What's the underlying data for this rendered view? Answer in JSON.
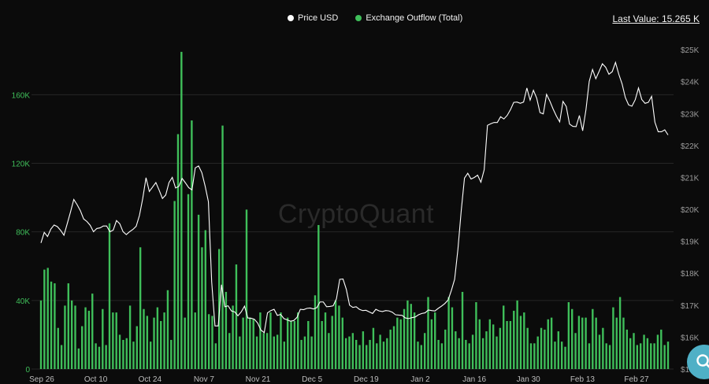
{
  "legend": {
    "price_label": "Price USD",
    "outflow_label": "Exchange Outflow (Total)"
  },
  "last_value": "Last Value: 15.265 K",
  "watermark": "CryptoQuant",
  "colors": {
    "background": "#0b0b0b",
    "price_line": "#ffffff",
    "outflow_bar": "#3fbf5a",
    "grid": "#2b2b2b",
    "search_button": "#4fb0c6"
  },
  "icons": {
    "search": "search-icon"
  },
  "chart_data": {
    "type": "bar",
    "x_ticks": [
      "Sep 26",
      "Oct 10",
      "Oct 24",
      "Nov 7",
      "Nov 21",
      "Dec 5",
      "Dec 19",
      "Jan 2",
      "Jan 16",
      "Jan 30",
      "Feb 13",
      "Feb 27"
    ],
    "y_left": {
      "ticks": [
        "0",
        "40K",
        "80K",
        "120K",
        "160K"
      ],
      "ylim": [
        0,
        190000
      ]
    },
    "y_right": {
      "ticks": [
        "$15K",
        "$16K",
        "$17K",
        "$18K",
        "$19K",
        "$20K",
        "$21K",
        "$22K",
        "$23K",
        "$24K",
        "$25K"
      ],
      "ylim": [
        15000,
        25200
      ]
    },
    "grid": true,
    "legend_placement": "top-center",
    "series": [
      {
        "name": "Exchange Outflow (Total)",
        "kind": "bar",
        "axis": "left",
        "values": [
          40000,
          58000,
          59000,
          51000,
          50000,
          24000,
          14000,
          37000,
          50000,
          40000,
          37000,
          12000,
          25000,
          36000,
          34000,
          44000,
          15000,
          13000,
          35000,
          14000,
          85000,
          33000,
          33000,
          20000,
          17000,
          18000,
          37000,
          16000,
          25000,
          71000,
          35000,
          31000,
          16000,
          30000,
          36000,
          28000,
          33000,
          46000,
          17000,
          98000,
          137000,
          185000,
          30000,
          102000,
          145000,
          33000,
          90000,
          71000,
          81000,
          32000,
          31000,
          15000,
          70000,
          142000,
          45000,
          21000,
          37000,
          61000,
          19000,
          30000,
          93000,
          30000,
          29000,
          19000,
          33000,
          21000,
          21000,
          33000,
          19000,
          20000,
          33000,
          16000,
          30000,
          28000,
          28000,
          33000,
          17000,
          19000,
          28000,
          19000,
          43000,
          84000,
          28000,
          33000,
          21000,
          31000,
          40000,
          37000,
          30000,
          18000,
          19000,
          21000,
          17000,
          14000,
          22000,
          14000,
          17000,
          24000,
          15000,
          20000,
          16000,
          18000,
          23000,
          25000,
          30000,
          29000,
          35000,
          40000,
          38000,
          33000,
          16000,
          14000,
          21000,
          42000,
          29000,
          33000,
          17000,
          15000,
          23000,
          42000,
          36000,
          22000,
          18000,
          45000,
          17000,
          15000,
          20000,
          39000,
          29000,
          18000,
          22000,
          29000,
          26000,
          19000,
          24000,
          37000,
          28000,
          28000,
          34000,
          40000,
          31000,
          33000,
          24000,
          15000,
          15000,
          19000,
          24000,
          23000,
          29000,
          30000,
          16000,
          22000,
          16000,
          13000,
          39000,
          35000,
          21000,
          31000,
          30000,
          30000,
          15000,
          35000,
          30000,
          20000,
          24000,
          15000,
          14000,
          36000,
          30000,
          42000,
          30000,
          23000,
          18000,
          21000,
          14000,
          15000,
          20000,
          18000,
          15000,
          15000,
          20000,
          23000,
          14000,
          16000
        ],
        "bar_values_note": ""
      },
      {
        "name": "Price USD",
        "kind": "line",
        "axis": "right",
        "values": [
          18950,
          19280,
          19150,
          19380,
          19510,
          19460,
          19340,
          19190,
          19550,
          19920,
          20310,
          20150,
          19960,
          19700,
          19620,
          19500,
          19300,
          19400,
          19420,
          19480,
          19480,
          19300,
          19350,
          19650,
          19550,
          19300,
          19210,
          19300,
          19370,
          19470,
          19810,
          20340,
          20990,
          20560,
          20700,
          20840,
          20600,
          20340,
          20450,
          20840,
          21000,
          20670,
          20720,
          20970,
          20830,
          20680,
          20610,
          21300,
          21360,
          21150,
          20730,
          20240,
          17730,
          16350,
          16350,
          17640,
          16950,
          16980,
          16820,
          16790,
          16670,
          16790,
          16970,
          16600,
          16590,
          16560,
          16440,
          16220,
          16140,
          16760,
          16830,
          16870,
          16680,
          16710,
          16580,
          16540,
          16500,
          16520,
          16620,
          16870,
          16860,
          16900,
          16910,
          16880,
          16920,
          17100,
          17100,
          16950,
          16960,
          16980,
          17200,
          17810,
          17820,
          17500,
          17000,
          16930,
          16950,
          16870,
          16830,
          16840,
          16790,
          16740,
          16870,
          16820,
          16800,
          16830,
          16820,
          16780,
          16700,
          16690,
          16680,
          16600,
          16580,
          16610,
          16630,
          16700,
          16740,
          16760,
          16850,
          16830,
          16820,
          16900,
          16970,
          17050,
          17160,
          17460,
          17810,
          18750,
          19950,
          20980,
          21130,
          20950,
          21000,
          21070,
          20850,
          21240,
          22630,
          22680,
          22720,
          22720,
          22900,
          22830,
          22940,
          23120,
          23350,
          23360,
          23320,
          23360,
          23800,
          23420,
          23730,
          23480,
          23030,
          22990,
          23600,
          23390,
          23140,
          22920,
          22740,
          23380,
          23220,
          22670,
          22600,
          22590,
          22940,
          22460,
          23120,
          24010,
          24380,
          24090,
          24320,
          24560,
          24450,
          24230,
          24310,
          24600,
          24230,
          23930,
          23500,
          23270,
          23230,
          23430,
          23800,
          23440,
          23320,
          23350,
          23540,
          22730,
          22430,
          22430,
          22490,
          22330
        ]
      }
    ]
  }
}
